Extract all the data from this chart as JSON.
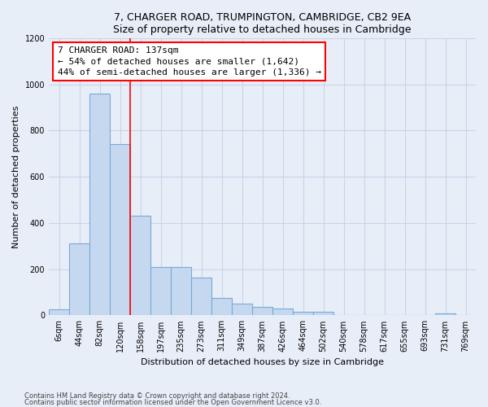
{
  "title1": "7, CHARGER ROAD, TRUMPINGTON, CAMBRIDGE, CB2 9EA",
  "title2": "Size of property relative to detached houses in Cambridge",
  "xlabel": "Distribution of detached houses by size in Cambridge",
  "ylabel": "Number of detached properties",
  "categories": [
    "6sqm",
    "44sqm",
    "82sqm",
    "120sqm",
    "158sqm",
    "197sqm",
    "235sqm",
    "273sqm",
    "311sqm",
    "349sqm",
    "387sqm",
    "426sqm",
    "464sqm",
    "502sqm",
    "540sqm",
    "578sqm",
    "617sqm",
    "655sqm",
    "693sqm",
    "731sqm",
    "769sqm"
  ],
  "values": [
    25,
    310,
    960,
    740,
    430,
    210,
    210,
    165,
    75,
    50,
    35,
    30,
    15,
    15,
    0,
    0,
    0,
    0,
    0,
    10,
    0
  ],
  "bar_color": "#c5d8f0",
  "bar_edge_color": "#7aaad4",
  "vline_x": 3.5,
  "annotation_text": "7 CHARGER ROAD: 137sqm\n← 54% of detached houses are smaller (1,642)\n44% of semi-detached houses are larger (1,336) →",
  "annotation_box_facecolor": "white",
  "annotation_box_edgecolor": "red",
  "vline_color": "red",
  "ylim": [
    0,
    1200
  ],
  "yticks": [
    0,
    200,
    400,
    600,
    800,
    1000,
    1200
  ],
  "footnote1": "Contains HM Land Registry data © Crown copyright and database right 2024.",
  "footnote2": "Contains public sector information licensed under the Open Government Licence v3.0.",
  "bg_color": "#e8eef8",
  "grid_color": "#c8d4e8",
  "title_fontsize": 9,
  "xlabel_fontsize": 8,
  "ylabel_fontsize": 8,
  "tick_fontsize": 7,
  "annot_fontsize": 8
}
